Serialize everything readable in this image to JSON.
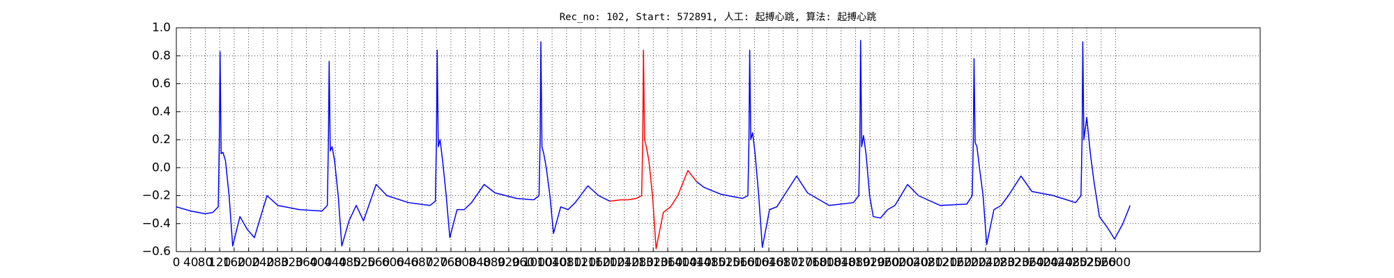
{
  "chart_data": {
    "type": "line",
    "title": "Rec_no: 102, Start: 572891, 人工: 起搏心跳, 算法: 起搏心跳",
    "xlim": [
      0,
      3000
    ],
    "ylim": [
      -0.6,
      1.0
    ],
    "xticks": [
      0,
      40,
      80,
      120,
      160,
      200,
      240,
      280,
      320,
      360,
      400,
      440,
      480,
      520,
      560,
      600,
      640,
      680,
      720,
      760,
      800,
      840,
      880,
      920,
      960,
      1000,
      1040,
      1080,
      1120,
      1160,
      1200,
      1240,
      1280,
      1320,
      1360,
      1400,
      1440,
      1480,
      1520,
      1560,
      1600,
      1640,
      1680,
      1720,
      1760,
      1800,
      1840,
      1880,
      1920,
      1960,
      2000,
      2040,
      2080,
      2120,
      2160,
      2200,
      2240,
      2280,
      2320,
      2360,
      2400,
      2440,
      2480,
      2520,
      2560,
      2600
    ],
    "yticks": [
      {
        "value": -0.6,
        "label": "−0.6"
      },
      {
        "value": -0.4,
        "label": "−0.4"
      },
      {
        "value": -0.2,
        "label": "−0.2"
      },
      {
        "value": 0,
        "label": "0.0"
      },
      0.2,
      0.4,
      0.6,
      0.8,
      {
        "value": 1,
        "label": "1.0"
      }
    ],
    "grid": true,
    "series": [
      {
        "color": "#0000ff",
        "x": [
          0,
          40,
          80,
          101,
          116,
          119,
          121,
          124,
          129,
          136,
          146,
          156,
          176,
          196,
          216,
          251,
          281,
          341,
          403,
          418,
          421,
          423,
          426,
          431,
          438,
          448,
          458,
          478,
          498,
          518,
          553,
          583,
          643,
          702,
          717,
          720,
          722,
          725,
          730,
          737,
          747,
          757,
          777,
          797,
          817,
          852,
          882,
          942,
          989,
          1004,
          1007,
          1009,
          1012,
          1017,
          1024,
          1034,
          1044,
          1064,
          1084,
          1104,
          1139,
          1169,
          1200
        ],
        "values": [
          -0.28,
          -0.31,
          -0.33,
          -0.32,
          -0.28,
          0.2,
          0.83,
          0.1,
          0.11,
          0.05,
          -0.2,
          -0.56,
          -0.35,
          -0.44,
          -0.5,
          -0.2,
          -0.27,
          -0.3,
          -0.31,
          -0.27,
          0.2,
          0.76,
          0.12,
          0.15,
          0.05,
          -0.2,
          -0.56,
          -0.38,
          -0.27,
          -0.38,
          -0.12,
          -0.2,
          -0.25,
          -0.27,
          -0.24,
          0.2,
          0.84,
          0.15,
          0.2,
          0.05,
          -0.2,
          -0.5,
          -0.3,
          -0.3,
          -0.25,
          -0.12,
          -0.18,
          -0.22,
          -0.23,
          -0.2,
          0.2,
          0.9,
          0.15,
          0.1,
          0,
          -0.2,
          -0.47,
          -0.28,
          -0.3,
          -0.25,
          -0.13,
          -0.2,
          -0.24
        ]
      },
      {
        "color": "#ff0000",
        "x": [
          1200,
          1230,
          1250,
          1273,
          1288,
          1291,
          1293,
          1296,
          1301,
          1308,
          1318,
          1328,
          1348,
          1368,
          1388,
          1416,
          1440
        ],
        "values": [
          -0.24,
          -0.23,
          -0.23,
          -0.22,
          -0.2,
          0.2,
          0.84,
          0.2,
          0.15,
          0.05,
          -0.2,
          -0.58,
          -0.32,
          -0.28,
          -0.2,
          -0.02,
          -0.1
        ]
      },
      {
        "color": "#0000ff",
        "x": [
          1440,
          1460,
          1507,
          1567,
          1582,
          1585,
          1587,
          1590,
          1595,
          1602,
          1612,
          1622,
          1642,
          1662,
          1682,
          1717,
          1747,
          1807,
          1874,
          1889,
          1892,
          1894,
          1897,
          1902,
          1909,
          1919,
          1929,
          1949,
          1969,
          1989,
          2024,
          2054,
          2114,
          2188,
          2203,
          2206,
          2208,
          2211,
          2216,
          2223,
          2233,
          2243,
          2263,
          2283,
          2303,
          2338,
          2368,
          2428,
          2489,
          2504,
          2507,
          2509,
          2512,
          2520,
          2530,
          2540,
          2555,
          2575,
          2597,
          2620,
          2640
        ],
        "values": [
          -0.1,
          -0.14,
          -0.19,
          -0.22,
          -0.2,
          0.2,
          0.84,
          0.2,
          0.25,
          0.1,
          -0.2,
          -0.57,
          -0.3,
          -0.28,
          -0.2,
          -0.06,
          -0.18,
          -0.27,
          -0.25,
          -0.2,
          0.2,
          0.91,
          0.15,
          0.23,
          0.1,
          -0.2,
          -0.35,
          -0.36,
          -0.3,
          -0.27,
          -0.12,
          -0.2,
          -0.27,
          -0.26,
          -0.2,
          0.2,
          0.78,
          0.18,
          0.15,
          0,
          -0.2,
          -0.55,
          -0.3,
          -0.27,
          -0.2,
          -0.06,
          -0.17,
          -0.2,
          -0.25,
          -0.2,
          0.2,
          0.9,
          0.2,
          0.36,
          0.1,
          -0.1,
          -0.35,
          -0.42,
          -0.51,
          -0.4,
          -0.27
        ]
      }
    ]
  }
}
